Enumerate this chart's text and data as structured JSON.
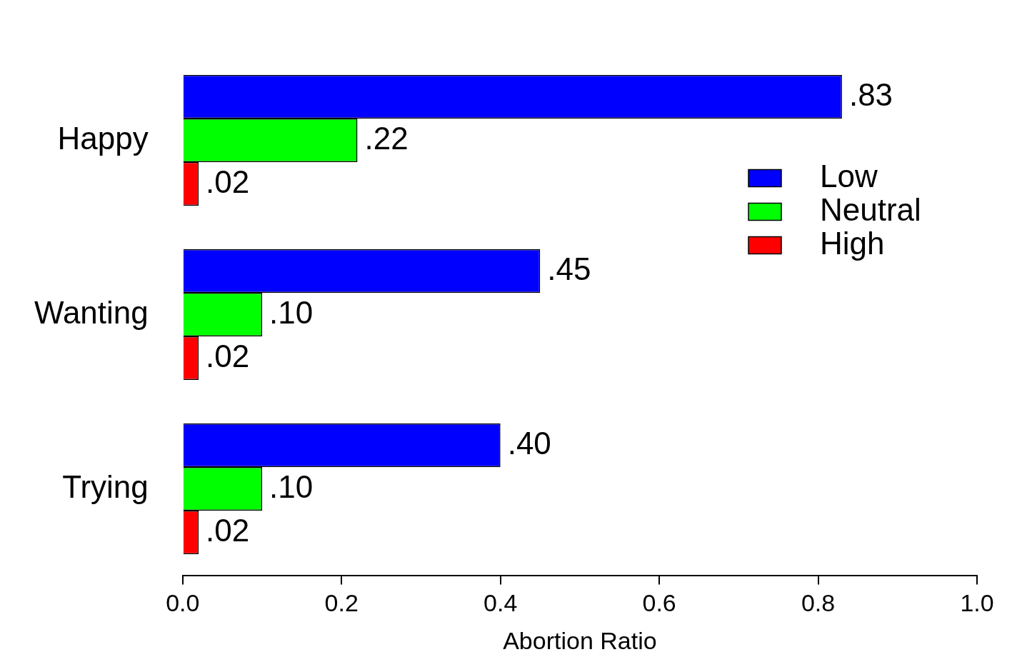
{
  "chart_data": {
    "type": "bar",
    "orientation": "horizontal",
    "xlabel": "Abortion Ratio",
    "categories": [
      "Happy",
      "Wanting",
      "Trying"
    ],
    "series": [
      {
        "name": "Low",
        "color": "#0000ff",
        "values": [
          0.83,
          0.45,
          0.4
        ],
        "value_labels": [
          ".83",
          ".45",
          ".40"
        ]
      },
      {
        "name": "Neutral",
        "color": "#00ff00",
        "values": [
          0.22,
          0.1,
          0.1
        ],
        "value_labels": [
          ".22",
          ".10",
          ".10"
        ]
      },
      {
        "name": "High",
        "color": "#ff0000",
        "values": [
          0.02,
          0.02,
          0.02
        ],
        "value_labels": [
          ".02",
          ".02",
          ".02"
        ]
      }
    ],
    "xlim": [
      0,
      1
    ],
    "xticks": [
      {
        "value": 0,
        "label": "0.0"
      },
      {
        "value": 0.2,
        "label": "0.2"
      },
      {
        "value": 0.4,
        "label": "0.4"
      },
      {
        "value": 0.6,
        "label": "0.6"
      },
      {
        "value": 0.8,
        "label": "0.8"
      },
      {
        "value": 1,
        "label": "1.0"
      }
    ],
    "grid": false,
    "legend": "top right"
  }
}
